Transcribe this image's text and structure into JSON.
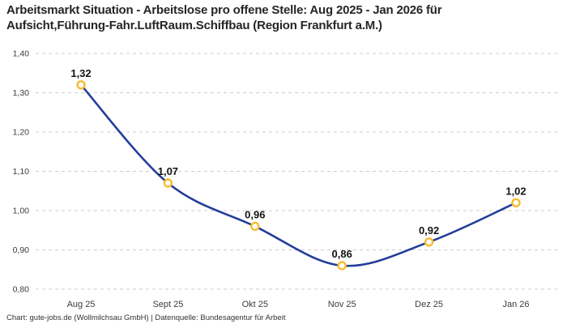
{
  "header": {
    "title_line1": "Arbeitsmarkt Situation - Arbeitslose pro offene Stelle: Aug 2025 - Jan 2026 für",
    "title_line2": "Aufsicht,Führung-Fahr.LuftRaum.Schiffbau (Region Frankfurt a.M.)"
  },
  "chart_data": {
    "type": "line",
    "title": "Arbeitsmarkt Situation - Arbeitslose pro offene Stelle: Aug 2025 - Jan 2026 für Aufsicht,Führung-Fahr.LuftRaum.Schiffbau (Region Frankfurt a.M.)",
    "categories": [
      "Aug 25",
      "Sept 25",
      "Okt 25",
      "Nov 25",
      "Dez 25",
      "Jan 26"
    ],
    "values": [
      1.32,
      1.07,
      0.96,
      0.86,
      0.92,
      1.02
    ],
    "point_labels": [
      "1,32",
      "1,07",
      "0,96",
      "0,86",
      "0,92",
      "1,02"
    ],
    "xlabel": "",
    "ylabel": "",
    "ylim": [
      0.8,
      1.4
    ],
    "ytick_step": 0.1,
    "ytick_labels": [
      "0,80",
      "0,90",
      "1,00",
      "1,10",
      "1,20",
      "1,30",
      "1,40"
    ],
    "grid": "horizontal-dashed",
    "legend": "none",
    "line_smooth": true
  },
  "colors": {
    "line": "#233d9b",
    "marker_stroke": "#f7bc2f",
    "marker_fill": "#ffffff",
    "grid": "#cccccc",
    "tick_text": "#3c3c3c",
    "point_label_text": "#141414",
    "background": "#ffffff"
  },
  "footer": {
    "text": "Chart: gute-jobs.de (Wollmilchsau GmbH) | Datenquelle: Bundesagentur für Arbeit"
  }
}
